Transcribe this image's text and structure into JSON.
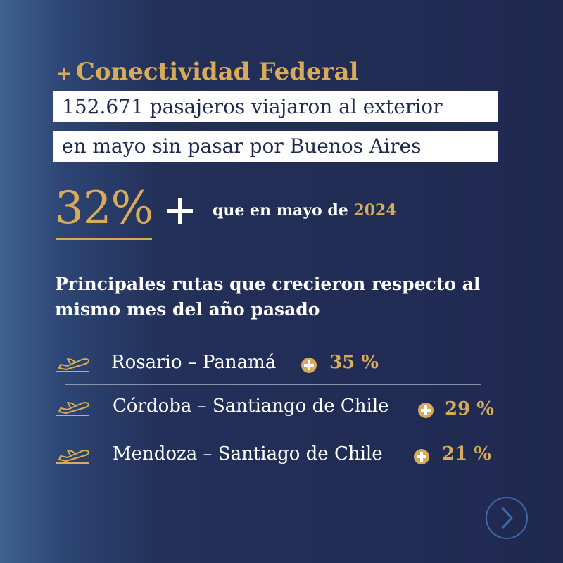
{
  "heading": {
    "plus": "+",
    "title": "Conectividad Federal"
  },
  "highlight": {
    "line1": "152.671 pasajeros viajaron al exterior",
    "line2": "en mayo sin pasar por Buenos Aires"
  },
  "stat": {
    "percent": "32%",
    "compare_text": "que en mayo de",
    "year": "2024"
  },
  "subtitle": "Principales rutas que crecieron respecto al mismo mes del año pasado",
  "routes": [
    {
      "label": "Rosario – Panamá",
      "growth": "35 %"
    },
    {
      "label": "Córdoba – Santiango de Chile",
      "growth": "29 %"
    },
    {
      "label": "Mendoza – Santiago de Chile",
      "growth": "21 %"
    }
  ],
  "colors": {
    "accent": "#d8ab5a",
    "background": "#1f2950",
    "button_border": "#3d6aa7"
  },
  "icons": {
    "route": "plane-takeoff-icon",
    "growth": "plus-circle-icon",
    "next": "chevron-right-icon"
  }
}
